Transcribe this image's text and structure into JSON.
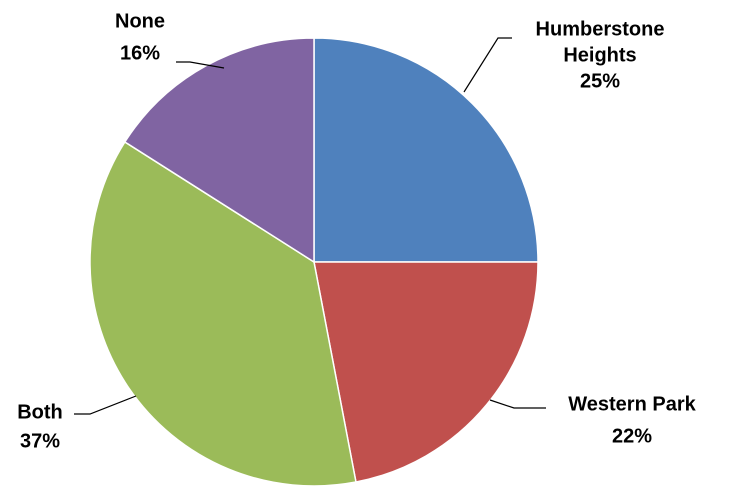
{
  "chart_data": {
    "type": "pie",
    "title": "",
    "slices": [
      {
        "label": [
          "Humberstone",
          "Heights"
        ],
        "value": 25,
        "value_label": "25%",
        "color": "#4F81BD"
      },
      {
        "label": [
          "Western Park"
        ],
        "value": 22,
        "value_label": "22%",
        "color": "#C0504D"
      },
      {
        "label": [
          "Both"
        ],
        "value": 37,
        "value_label": "37%",
        "color": "#9BBB59"
      },
      {
        "label": [
          "None"
        ],
        "value": 16,
        "value_label": "16%",
        "color": "#8064A2"
      }
    ],
    "legend": "none",
    "start_angle": "12 o'clock",
    "direction": "clockwise",
    "data_labels": "outside with leader lines"
  }
}
